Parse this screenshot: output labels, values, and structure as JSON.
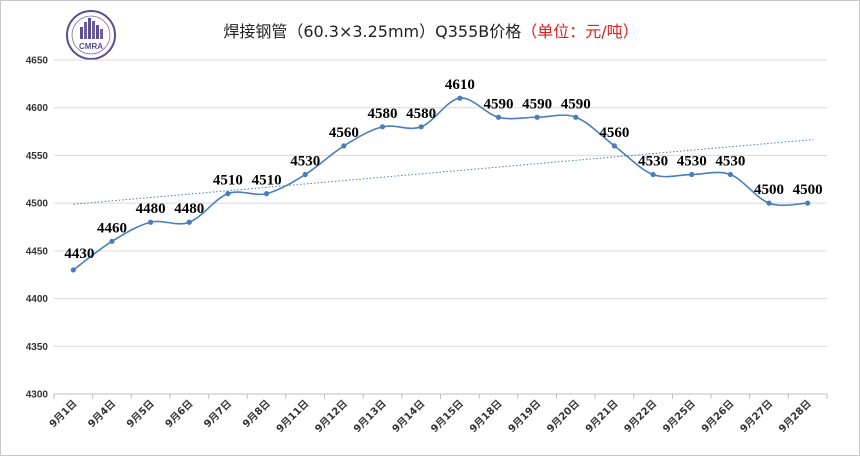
{
  "chart_data": {
    "type": "line",
    "title": "焊接钢管（60.3×3.25mm）Q355B价格",
    "title_unit": "（单位：元/吨）",
    "categories": [
      "9月1日",
      "9月4日",
      "9月5日",
      "9月6日",
      "9月7日",
      "9月8日",
      "9月11日",
      "9月12日",
      "9月13日",
      "9月14日",
      "9月15日",
      "9月18日",
      "9月19日",
      "9月20日",
      "9月21日",
      "9月22日",
      "9月25日",
      "9月26日",
      "9月27日",
      "9月28日"
    ],
    "series": [
      {
        "values": [
          4430,
          4460,
          4480,
          4480,
          4510,
          4510,
          4530,
          4560,
          4580,
          4580,
          4610,
          4590,
          4590,
          4590,
          4560,
          4530,
          4530,
          4530,
          4500,
          4500
        ],
        "color": "#4a7ebb",
        "data_labels": true
      }
    ],
    "trendline": {
      "type": "linear",
      "style": "dotted",
      "color": "#4a7ebb"
    },
    "ylim": [
      4300,
      4650
    ],
    "yticks": [
      4300,
      4350,
      4400,
      4450,
      4500,
      4550,
      4600,
      4650
    ],
    "grid": true,
    "legend": "none",
    "xlabel": "",
    "ylabel": ""
  },
  "logo": {
    "text": "CMRA",
    "name": "cmra-logo",
    "colors": [
      "#5b4d8f",
      "#7b6fb0"
    ]
  }
}
